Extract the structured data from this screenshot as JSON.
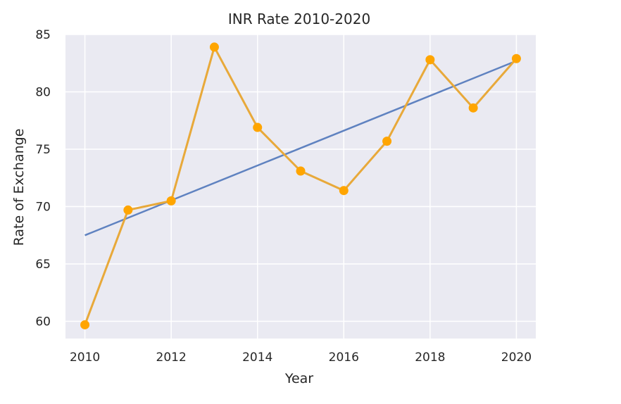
{
  "chart_data": {
    "type": "line",
    "title": "INR Rate 2010-2020",
    "xlabel": "Year",
    "ylabel": "Rate of Exchange",
    "xlim": [
      2009.55,
      2020.45
    ],
    "ylim": [
      58.5,
      85.0
    ],
    "xticks": [
      2010,
      2012,
      2014,
      2016,
      2018,
      2020
    ],
    "yticks": [
      60,
      65,
      70,
      75,
      80,
      85
    ],
    "grid": true,
    "series": [
      {
        "type": "line-markers",
        "x": [
          2010,
          2011,
          2012,
          2013,
          2014,
          2015,
          2016,
          2017,
          2018,
          2019,
          2020
        ],
        "y": [
          59.7,
          69.7,
          70.5,
          83.9,
          76.9,
          73.1,
          71.4,
          75.7,
          82.8,
          78.6,
          82.9
        ],
        "color": "#e8a93a",
        "marker_color": "#ffa500"
      },
      {
        "type": "trend-line",
        "x": [
          2010,
          2020
        ],
        "y": [
          67.5,
          82.7
        ],
        "color": "#5f82c0"
      }
    ],
    "colors": {
      "plot_background": "#eaeaf2",
      "grid": "#ffffff",
      "text": "#262626"
    }
  }
}
